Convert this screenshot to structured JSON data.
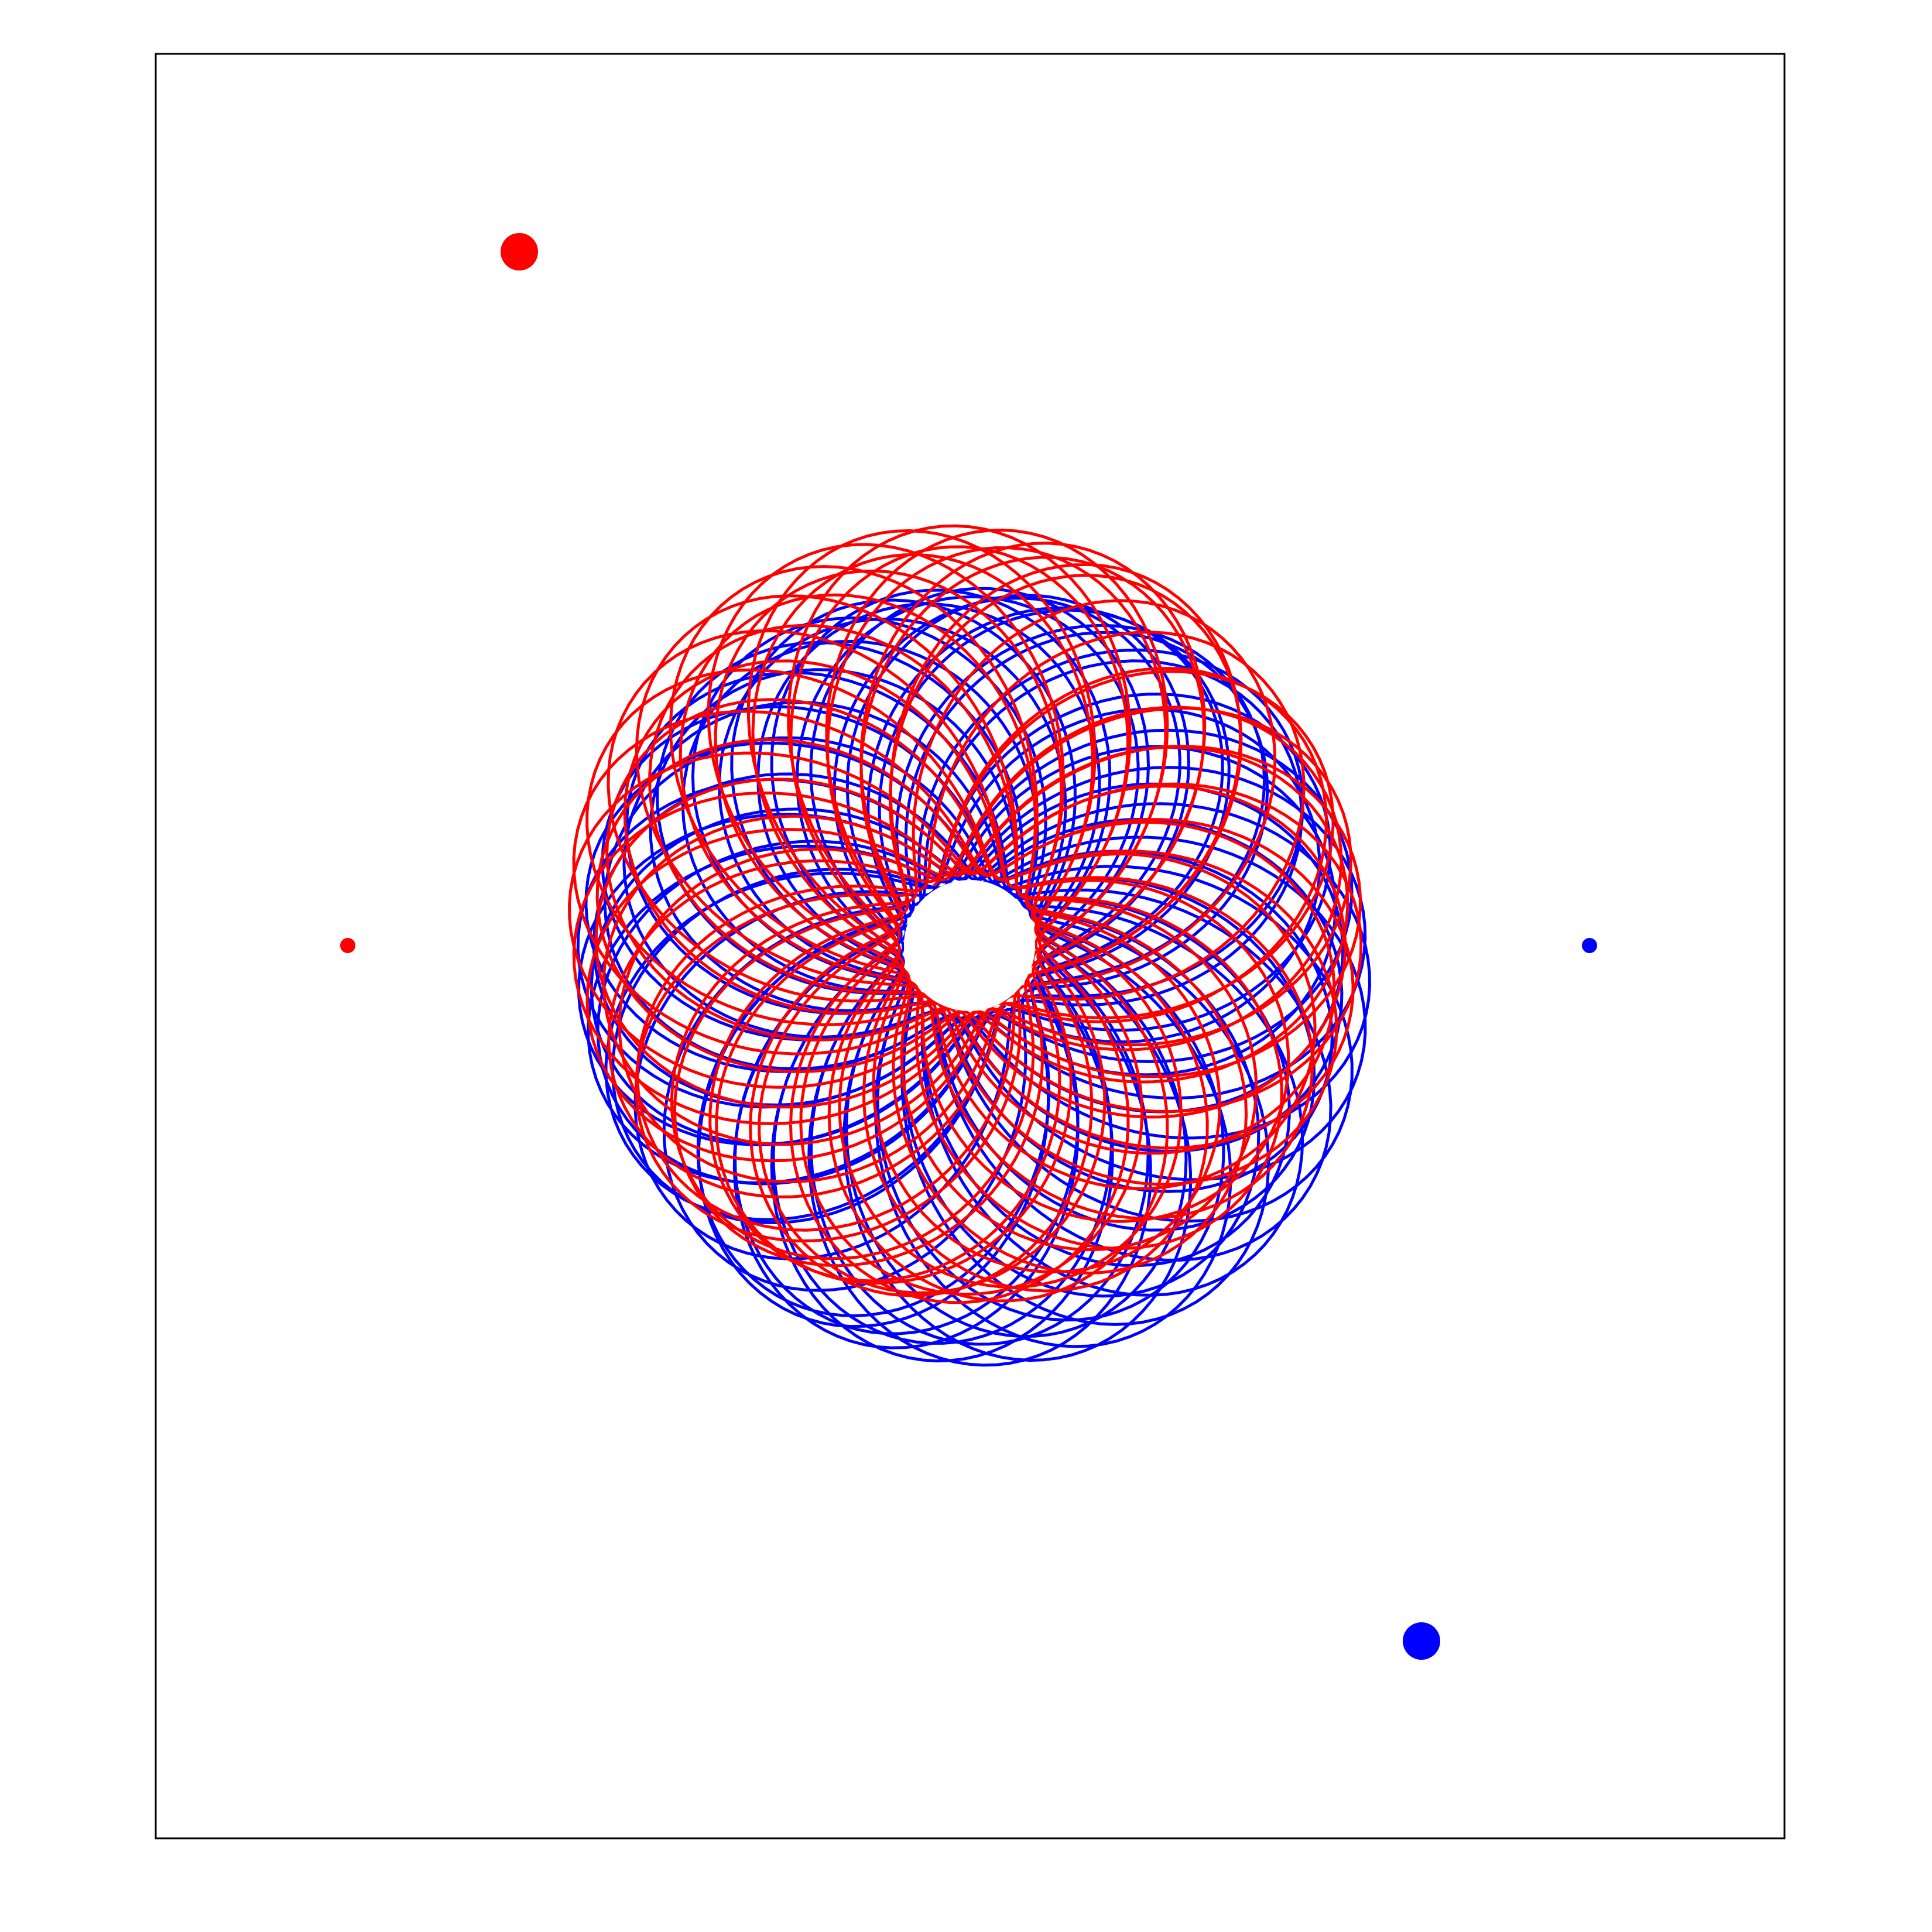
{
  "figure": {
    "kind": "two-body rosette orbit plot",
    "frame": true,
    "axes_visible": false,
    "background_color": "#ffffff",
    "frame_color": "#000000",
    "central_hole_color": "#ffffff"
  },
  "orbits": [
    {
      "name": "blue-orbit",
      "color": "#0000ff",
      "loops": 62,
      "end_marker": "large-dot",
      "start_marker": "small-dot"
    },
    {
      "name": "red-orbit",
      "color": "#ff0000",
      "loops": 62,
      "end_marker": "large-dot",
      "start_marker": "small-dot"
    }
  ]
}
